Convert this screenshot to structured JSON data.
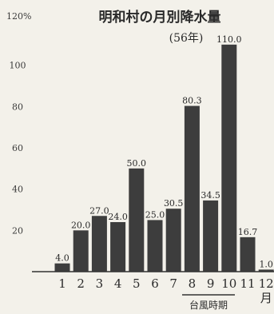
{
  "chart_data": {
    "type": "bar",
    "title": "明和村の月別降水量",
    "subtitle": "(56年)",
    "ylabel": "120%",
    "yticks": [
      20,
      40,
      60,
      80,
      100
    ],
    "ylim": [
      0,
      120
    ],
    "categories": [
      "1",
      "2",
      "3",
      "4",
      "5",
      "6",
      "7",
      "8",
      "9",
      "10",
      "11",
      "12"
    ],
    "last_category_suffix": "月",
    "values": [
      4.0,
      20.0,
      27.0,
      24.0,
      50.0,
      25.0,
      30.5,
      80.3,
      34.5,
      110.0,
      16.7,
      1.0
    ],
    "value_labels": [
      "4.0",
      "20.0",
      "27.0",
      "24.0",
      "50.0",
      "25.0",
      "30.5",
      "80.3",
      "34.5",
      "110.0",
      "16.7",
      "1.0"
    ],
    "bar_color": "#3d3d3d",
    "grid": false,
    "annotation": "台風時期"
  }
}
